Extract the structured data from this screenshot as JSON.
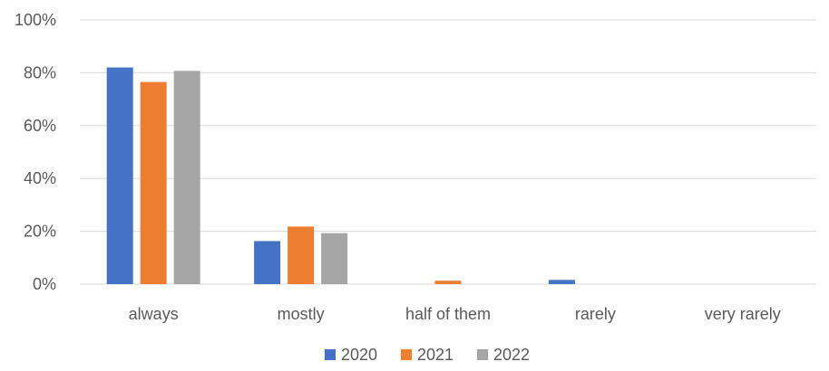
{
  "chart_data": {
    "type": "bar",
    "categories": [
      "always",
      "mostly",
      "half of them",
      "rarely",
      "very rarely"
    ],
    "series": [
      {
        "name": "2020",
        "color": "#4472c4",
        "values": [
          82,
          16.3,
          0,
          1.6,
          0
        ]
      },
      {
        "name": "2021",
        "color": "#ed7d31",
        "values": [
          76.5,
          21.8,
          1.3,
          0,
          0
        ]
      },
      {
        "name": "2022",
        "color": "#a5a5a5",
        "values": [
          80.7,
          19.3,
          0,
          0,
          0
        ]
      }
    ],
    "yticks": [
      "0%",
      "20%",
      "40%",
      "60%",
      "80%",
      "100%"
    ],
    "ylim": [
      0,
      100
    ],
    "grid": true,
    "legend_position": "bottom"
  }
}
